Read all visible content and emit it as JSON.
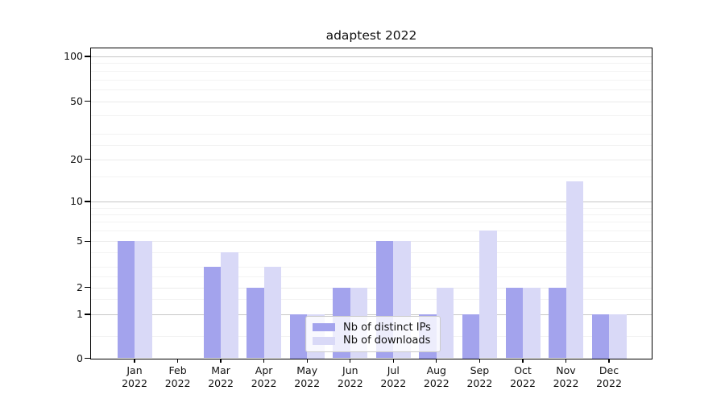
{
  "chart_data": {
    "type": "bar",
    "title": "adaptest 2022",
    "months": [
      "Jan",
      "Feb",
      "Mar",
      "Apr",
      "May",
      "Jun",
      "Jul",
      "Aug",
      "Sep",
      "Oct",
      "Nov",
      "Dec"
    ],
    "year": "2022",
    "series": [
      {
        "name": "Nb of distinct IPs",
        "color": "#a3a3ed",
        "values": [
          5,
          0,
          3,
          2,
          1,
          2,
          5,
          1,
          1,
          2,
          2,
          1
        ]
      },
      {
        "name": "Nb of downloads",
        "color": "#d9d9f7",
        "values": [
          5,
          0,
          4,
          3,
          1,
          2,
          5,
          2,
          6,
          2,
          14,
          1
        ]
      }
    ],
    "yscale": "symlog",
    "ylim": [
      0,
      115
    ],
    "yticks": [
      0,
      1,
      2,
      5,
      10,
      20,
      50,
      100
    ],
    "yticks_decade": [
      1,
      10,
      100
    ],
    "yticks_minor": [
      0.5,
      1.5,
      2.5,
      3,
      4,
      6,
      7,
      8,
      9,
      15,
      25,
      30,
      40,
      60,
      70,
      80,
      90
    ],
    "grid": true,
    "legend_position": "lower center"
  },
  "colors": {
    "grid_major": "#c7c7c7",
    "grid_mid": "#ebebeb",
    "grid_minor": "#f3f3f3",
    "spine": "#000000",
    "text": "#111111",
    "background": "#ffffff"
  }
}
